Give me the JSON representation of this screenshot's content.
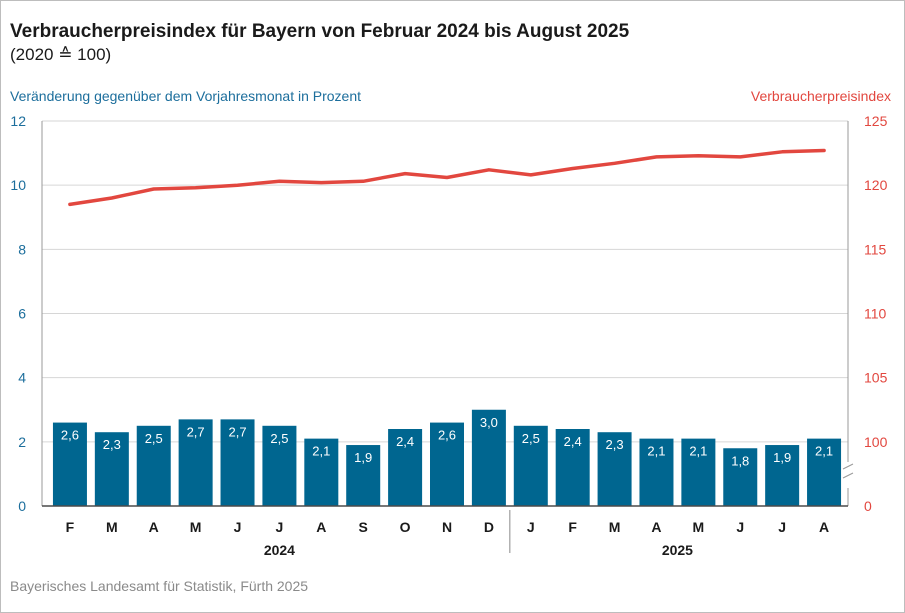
{
  "header": {
    "title": "Verbraucherpreisindex für Bayern von Februar 2024 bis August 2025",
    "subtitle": "(2020 ≙ 100)"
  },
  "footer": {
    "source": "Bayerisches Landesamt für Statistik, Fürth 2025"
  },
  "colors": {
    "bar": "#006690",
    "line": "#e2473f",
    "left_axis": "#1c6e9c",
    "right_axis": "#e2473f",
    "grid": "#d6d6d6"
  },
  "chart_data": {
    "type": "bar",
    "categories": [
      "F",
      "M",
      "A",
      "M",
      "J",
      "J",
      "A",
      "S",
      "O",
      "N",
      "D",
      "J",
      "F",
      "M",
      "A",
      "M",
      "J",
      "J",
      "A"
    ],
    "year_groups": [
      {
        "label": "2024",
        "span": [
          0,
          10
        ]
      },
      {
        "label": "2025",
        "span": [
          11,
          18
        ]
      }
    ],
    "bars": {
      "axis": "left",
      "values": [
        2.6,
        2.3,
        2.5,
        2.7,
        2.7,
        2.5,
        2.1,
        1.9,
        2.4,
        2.6,
        3.0,
        2.5,
        2.4,
        2.3,
        2.1,
        2.1,
        1.8,
        1.9,
        2.1
      ],
      "labels": [
        "2,6",
        "2,3",
        "2,5",
        "2,7",
        "2,7",
        "2,5",
        "2,1",
        "1,9",
        "2,4",
        "2,6",
        "3,0",
        "2,5",
        "2,4",
        "2,3",
        "2,1",
        "2,1",
        "1,8",
        "1,9",
        "2,1"
      ]
    },
    "line": {
      "axis": "right",
      "values": [
        118.5,
        119.0,
        119.7,
        119.8,
        120.0,
        120.3,
        120.2,
        120.3,
        120.9,
        120.6,
        121.2,
        120.8,
        121.3,
        121.7,
        122.2,
        122.3,
        122.2,
        122.6,
        122.7
      ]
    },
    "ylabel_left": "Veränderung gegenüber dem Vorjahresmonat in Prozent",
    "ylabel_right": "Verbraucherpreisindex",
    "ylim_left": [
      0,
      12
    ],
    "yticks_left": [
      "0",
      "2",
      "4",
      "6",
      "8",
      "10",
      "12"
    ],
    "ylim_right": [
      95,
      125
    ],
    "yticks_right": [
      "0",
      "100",
      "105",
      "110",
      "115",
      "120",
      "125"
    ],
    "right_axis_break": true,
    "grid": true,
    "legend": "none"
  }
}
